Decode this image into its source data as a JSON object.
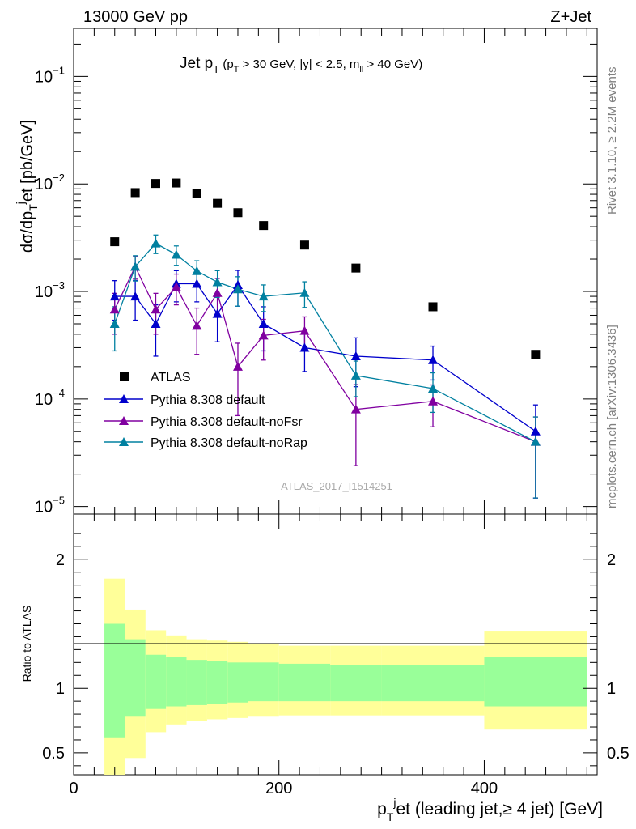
{
  "header": {
    "left_text": "13000 GeV pp",
    "right_text": "Z+Jet",
    "plot_title": "Jet p_T (p_T > 30 GeV, |y| < 2.5, m_ll > 40 GeV)",
    "watermark": "ATLAS_2017_I1514251"
  },
  "side_labels": {
    "rivet": "Rivet 3.1.10, ≥ 2.2M events",
    "mcplots": "mcplots.cern.ch [arXiv:1306.3436]"
  },
  "colors": {
    "atlas": "#000000",
    "default": "#0000cc",
    "noFsr": "#8000a0",
    "noRap": "#0080a0",
    "band_inner": "#99ff99",
    "band_outer": "#ffff99"
  },
  "chart_data": [
    {
      "type": "scatter",
      "title": "Jet p_T (p_T > 30 GeV, |y| < 2.5, m_ll > 40 GeV)",
      "ylabel": "dσ/dp_T^jet [pb/GeV]",
      "xlabel": "",
      "xlim": [
        0,
        510
      ],
      "ylim": [
        8.5e-06,
        0.28
      ],
      "yscale": "log",
      "y_ticks": [
        "10^-5",
        "10^-4",
        "10^-3",
        "10^-2",
        "10^-1"
      ],
      "legend_position": "middle-left",
      "series": [
        {
          "name": "ATLAS",
          "marker": "square",
          "x": [
            40,
            60,
            80,
            100,
            120,
            140,
            160,
            185,
            225,
            275,
            350,
            450
          ],
          "y": [
            0.0029,
            0.0083,
            0.0101,
            0.0102,
            0.0082,
            0.0066,
            0.0054,
            0.0041,
            0.0027,
            0.00165,
            0.00072,
            0.00026
          ]
        },
        {
          "name": "Pythia 8.308 default",
          "marker": "triangle",
          "x": [
            40,
            60,
            80,
            100,
            120,
            140,
            160,
            185,
            225,
            275,
            350,
            450
          ],
          "y": [
            0.0009,
            0.0009,
            0.0005,
            0.00118,
            0.00118,
            0.00062,
            0.00115,
            0.0005,
            0.0003,
            0.00025,
            0.00023,
            5e-05
          ],
          "y_err": [
            0.00036,
            0.00036,
            0.00025,
            0.00038,
            0.00038,
            0.00028,
            0.00042,
            0.00022,
            0.00012,
            0.00012,
            8e-05,
            3.8e-05
          ]
        },
        {
          "name": "Pythia 8.308 default-noFsr",
          "marker": "triangle",
          "x": [
            40,
            60,
            80,
            100,
            120,
            140,
            160,
            185,
            225,
            275,
            350,
            450
          ],
          "y": [
            0.00068,
            0.0017,
            0.00068,
            0.0011,
            0.00048,
            0.00097,
            0.0002,
            0.00039,
            0.00043,
            8e-05,
            9.5e-05,
            4e-05
          ],
          "y_err": [
            0.00028,
            0.0004,
            0.00028,
            0.00035,
            0.00022,
            0.00035,
            0.00013,
            0.00016,
            0.00015,
            5.6e-05,
            4e-05,
            2.8e-05
          ]
        },
        {
          "name": "Pythia 8.308 default-noRap",
          "marker": "triangle",
          "x": [
            40,
            60,
            80,
            100,
            120,
            140,
            160,
            185,
            225,
            275,
            350,
            450
          ],
          "y": [
            0.0005,
            0.0017,
            0.0028,
            0.0022,
            0.00155,
            0.00122,
            0.00105,
            0.0009,
            0.00097,
            0.000165,
            0.000125,
            4e-05
          ],
          "y_err": [
            0.00022,
            0.00045,
            0.00055,
            0.00045,
            0.00038,
            0.00034,
            0.00032,
            0.00025,
            0.00026,
            6e-05,
            5e-05,
            2.8e-05
          ]
        }
      ]
    },
    {
      "type": "area",
      "ylabel": "Ratio to ATLAS",
      "xlabel": "p_T^jet (leading jet,≥ 4 jet) [GeV]",
      "xlim": [
        0,
        510
      ],
      "ylim": [
        0.33,
        2.35
      ],
      "x_ticks": [
        "0",
        "200",
        "400"
      ],
      "y_ticks": [
        "0.5",
        "1",
        "2"
      ],
      "bins": [
        [
          30,
          50
        ],
        [
          50,
          70
        ],
        [
          70,
          90
        ],
        [
          90,
          110
        ],
        [
          110,
          130
        ],
        [
          130,
          150
        ],
        [
          150,
          170
        ],
        [
          170,
          200
        ],
        [
          200,
          250
        ],
        [
          250,
          300
        ],
        [
          300,
          400
        ],
        [
          400,
          500
        ]
      ],
      "inner_band": [
        [
          0.62,
          1.5
        ],
        [
          0.78,
          1.38
        ],
        [
          0.84,
          1.26
        ],
        [
          0.86,
          1.24
        ],
        [
          0.87,
          1.22
        ],
        [
          0.88,
          1.21
        ],
        [
          0.89,
          1.2
        ],
        [
          0.9,
          1.2
        ],
        [
          0.9,
          1.19
        ],
        [
          0.9,
          1.18
        ],
        [
          0.9,
          1.18
        ],
        [
          0.86,
          1.24
        ]
      ],
      "outer_band": [
        [
          0.33,
          1.85
        ],
        [
          0.46,
          1.61
        ],
        [
          0.66,
          1.45
        ],
        [
          0.72,
          1.41
        ],
        [
          0.75,
          1.38
        ],
        [
          0.76,
          1.37
        ],
        [
          0.77,
          1.36
        ],
        [
          0.78,
          1.35
        ],
        [
          0.79,
          1.33
        ],
        [
          0.79,
          1.33
        ],
        [
          0.79,
          1.33
        ],
        [
          0.68,
          1.44
        ]
      ]
    }
  ]
}
